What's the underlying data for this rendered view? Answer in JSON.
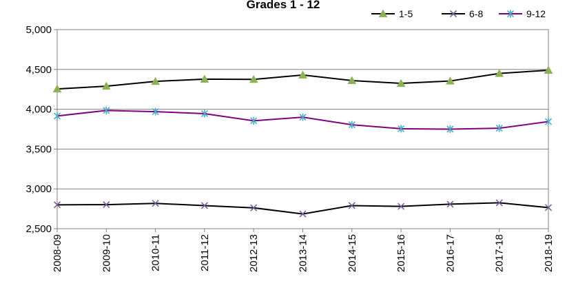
{
  "chart_data": {
    "type": "line",
    "title": "Grades 1 - 12",
    "xlabel": "",
    "ylabel": "",
    "categories": [
      "2008-09",
      "2009-10",
      "2010-11",
      "2011-12",
      "2012-13",
      "2013-14",
      "2014-15",
      "2015-16",
      "2016-17",
      "2017-18",
      "2018-19"
    ],
    "ylim": [
      2500,
      5000
    ],
    "yticks": [
      2500,
      3000,
      3500,
      4000,
      4500,
      5000
    ],
    "ytick_labels": [
      "2,500",
      "3,000",
      "3,500",
      "4,000",
      "4,500",
      "5,000"
    ],
    "grid": true,
    "legend_position": "top-right",
    "series": [
      {
        "name": "1-5",
        "line_color": "#000000",
        "marker": "triangle",
        "marker_color": "#8DB255",
        "values": [
          4255,
          4290,
          4350,
          4378,
          4375,
          4430,
          4360,
          4325,
          4355,
          4450,
          4490
        ]
      },
      {
        "name": "6-8",
        "line_color": "#000000",
        "marker": "x",
        "marker_color": "#7A5D9C",
        "values": [
          2800,
          2802,
          2818,
          2790,
          2762,
          2685,
          2790,
          2780,
          2808,
          2825,
          2765
        ]
      },
      {
        "name": "9-12",
        "line_color": "#800080",
        "marker": "star",
        "marker_color": "#4AACC6",
        "values": [
          3915,
          3985,
          3970,
          3945,
          3855,
          3900,
          3805,
          3755,
          3750,
          3762,
          3845
        ]
      }
    ]
  }
}
